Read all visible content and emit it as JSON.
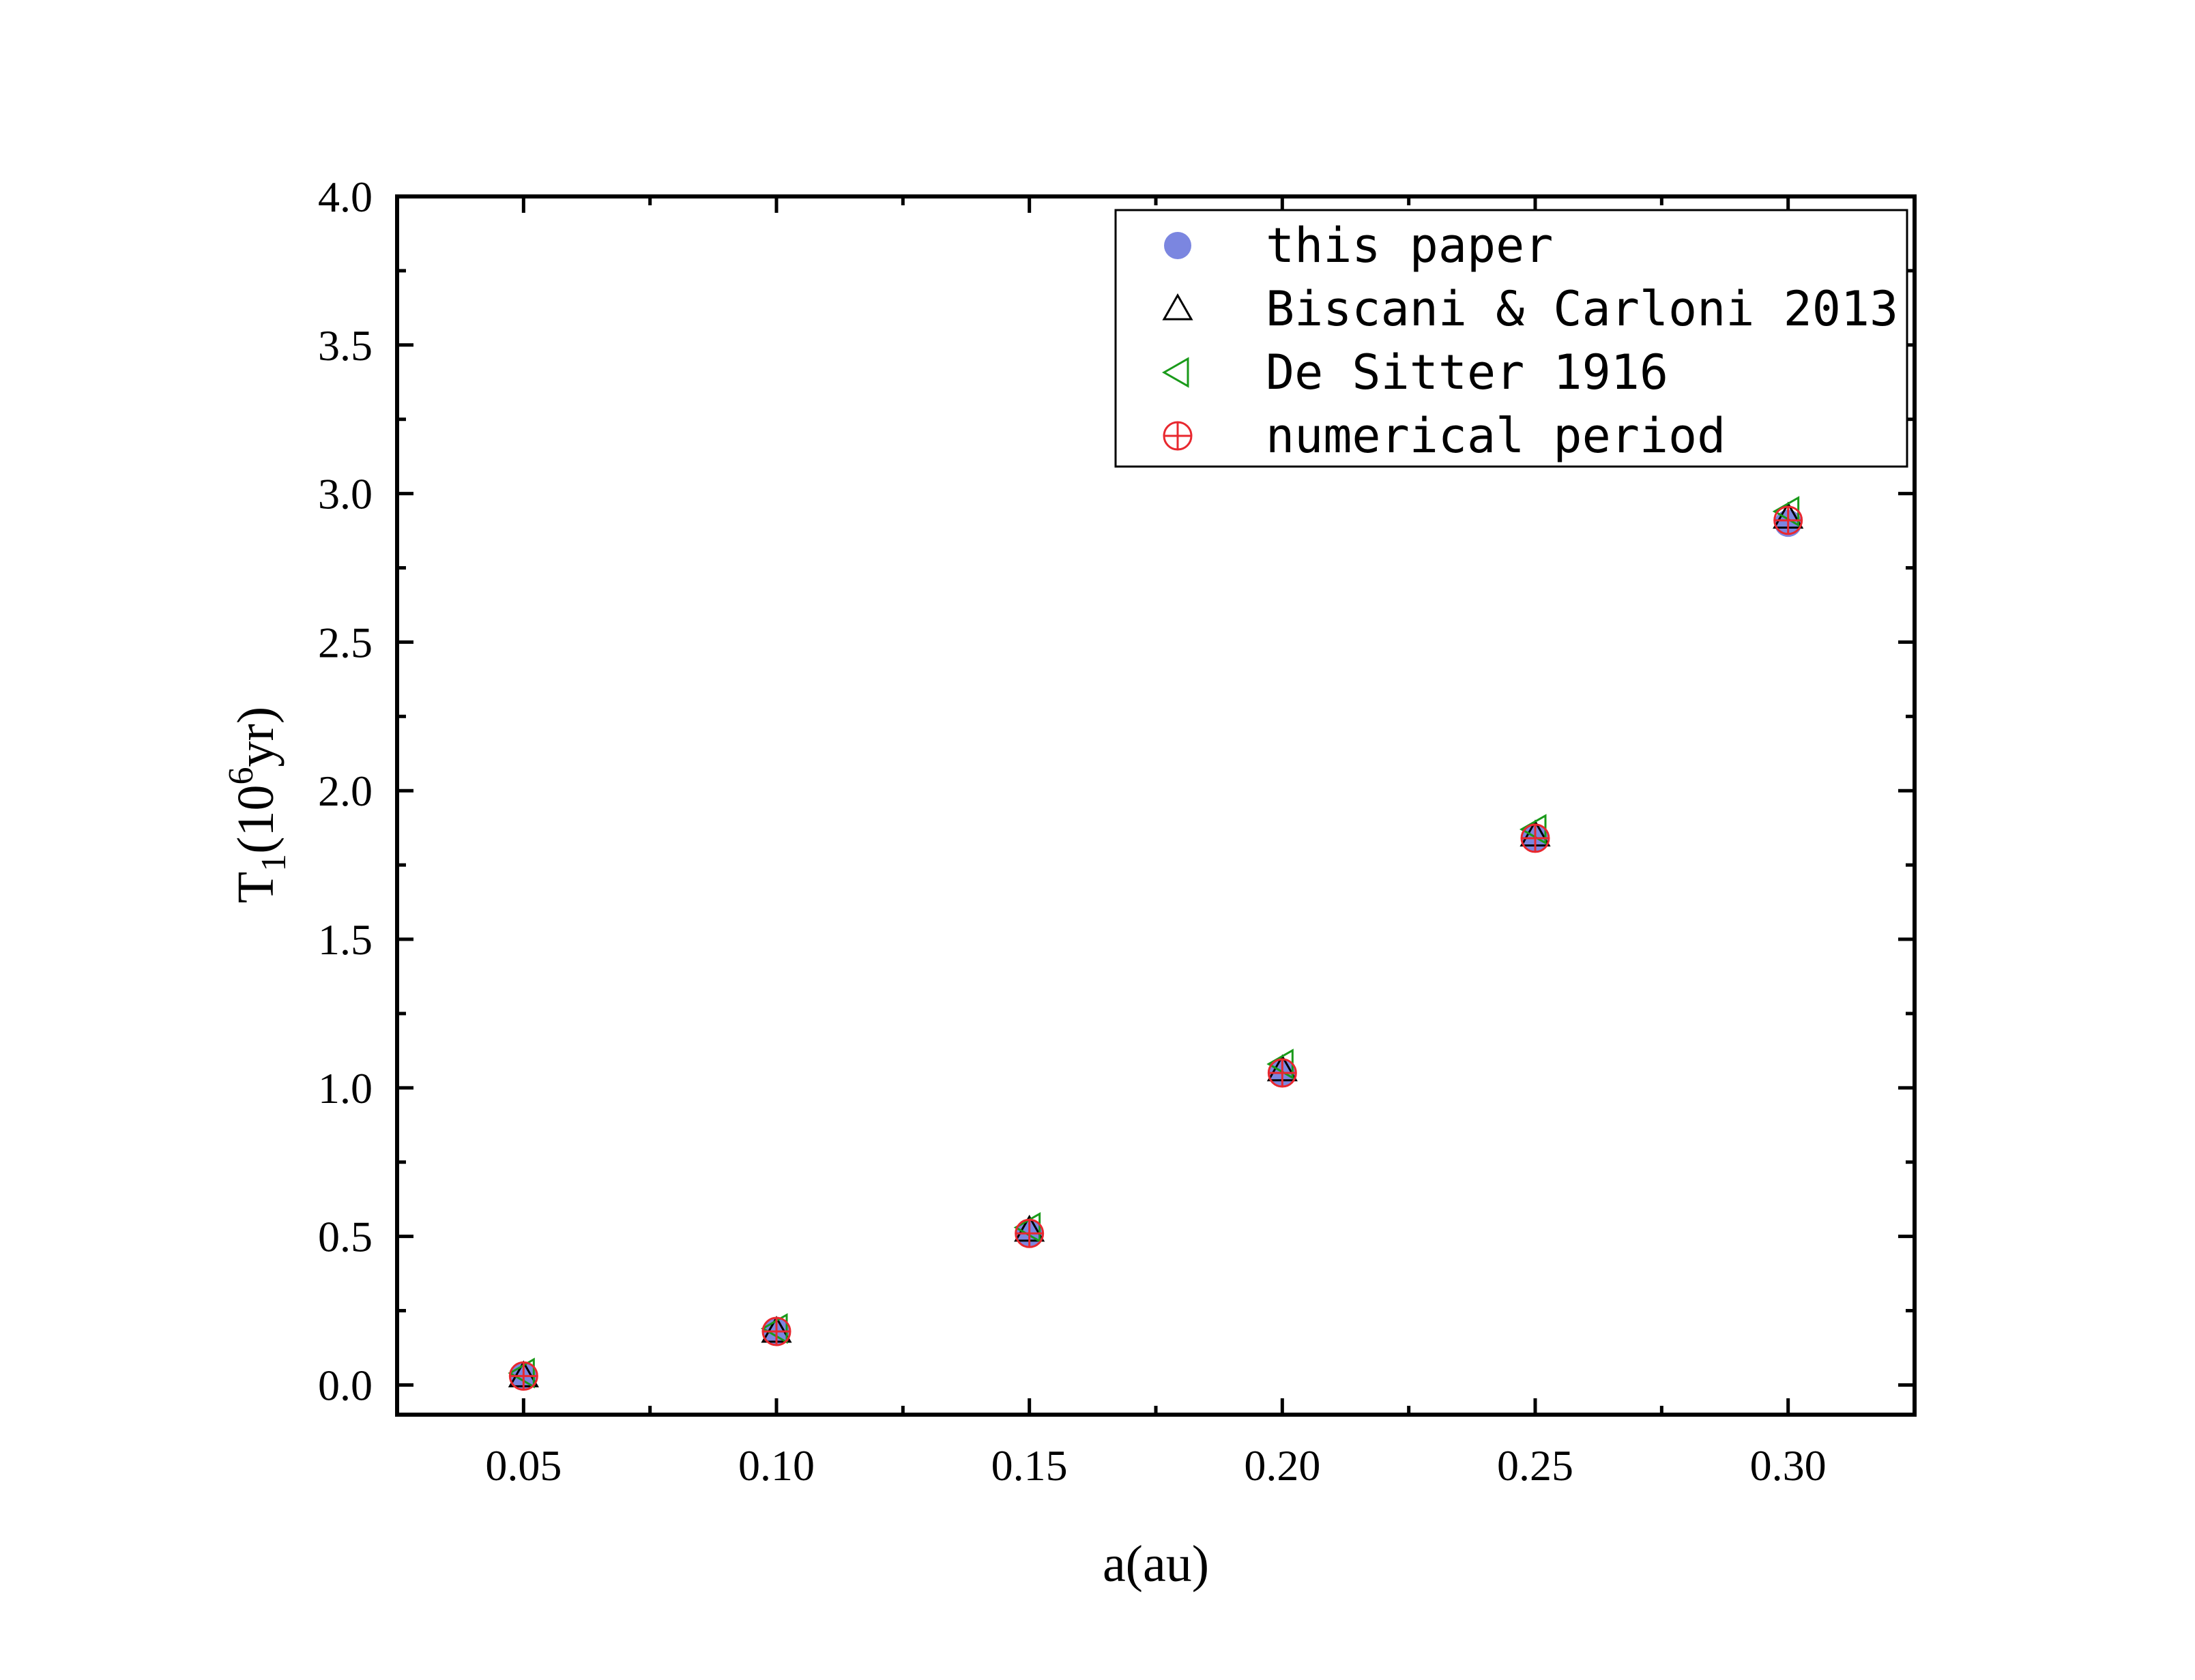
{
  "chart_data": {
    "type": "scatter",
    "xlabel": "a(au)",
    "ylabel": {
      "base": "T",
      "sub": "1",
      "paren_open": "(10",
      "sup": "6",
      "unit": "yr)"
    },
    "xlim": [
      0.025,
      0.325
    ],
    "ylim": [
      -0.1,
      4.0
    ],
    "x_ticks": [
      0.05,
      0.1,
      0.15,
      0.2,
      0.25,
      0.3
    ],
    "x_tick_labels": [
      "0.05",
      "0.10",
      "0.15",
      "0.20",
      "0.25",
      "0.30"
    ],
    "y_ticks": [
      0.0,
      0.5,
      1.0,
      1.5,
      2.0,
      2.5,
      3.0,
      3.5,
      4.0
    ],
    "y_tick_labels": [
      "0.0",
      "0.5",
      "1.0",
      "1.5",
      "2.0",
      "2.5",
      "3.0",
      "3.5",
      "4.0"
    ],
    "grid": false,
    "legend_position": "top-right",
    "x": [
      0.05,
      0.1,
      0.15,
      0.2,
      0.25,
      0.3
    ],
    "series": [
      {
        "name": "this paper",
        "marker": "circle",
        "color": "#7b86e0",
        "values": [
          0.03,
          0.18,
          0.51,
          1.05,
          1.84,
          2.9
        ]
      },
      {
        "name": "Biscani & Carloni 2013",
        "marker": "triangle-up",
        "color": "#000000",
        "values": [
          0.03,
          0.18,
          0.52,
          1.06,
          1.85,
          2.92
        ]
      },
      {
        "name": "De Sitter 1916",
        "marker": "triangle-left",
        "color": "#1a9a1a",
        "values": [
          0.04,
          0.19,
          0.53,
          1.08,
          1.87,
          2.94
        ]
      },
      {
        "name": "numerical period",
        "marker": "circle-plus",
        "color": "#e8282f",
        "values": [
          0.03,
          0.18,
          0.51,
          1.05,
          1.84,
          2.91
        ]
      }
    ]
  }
}
